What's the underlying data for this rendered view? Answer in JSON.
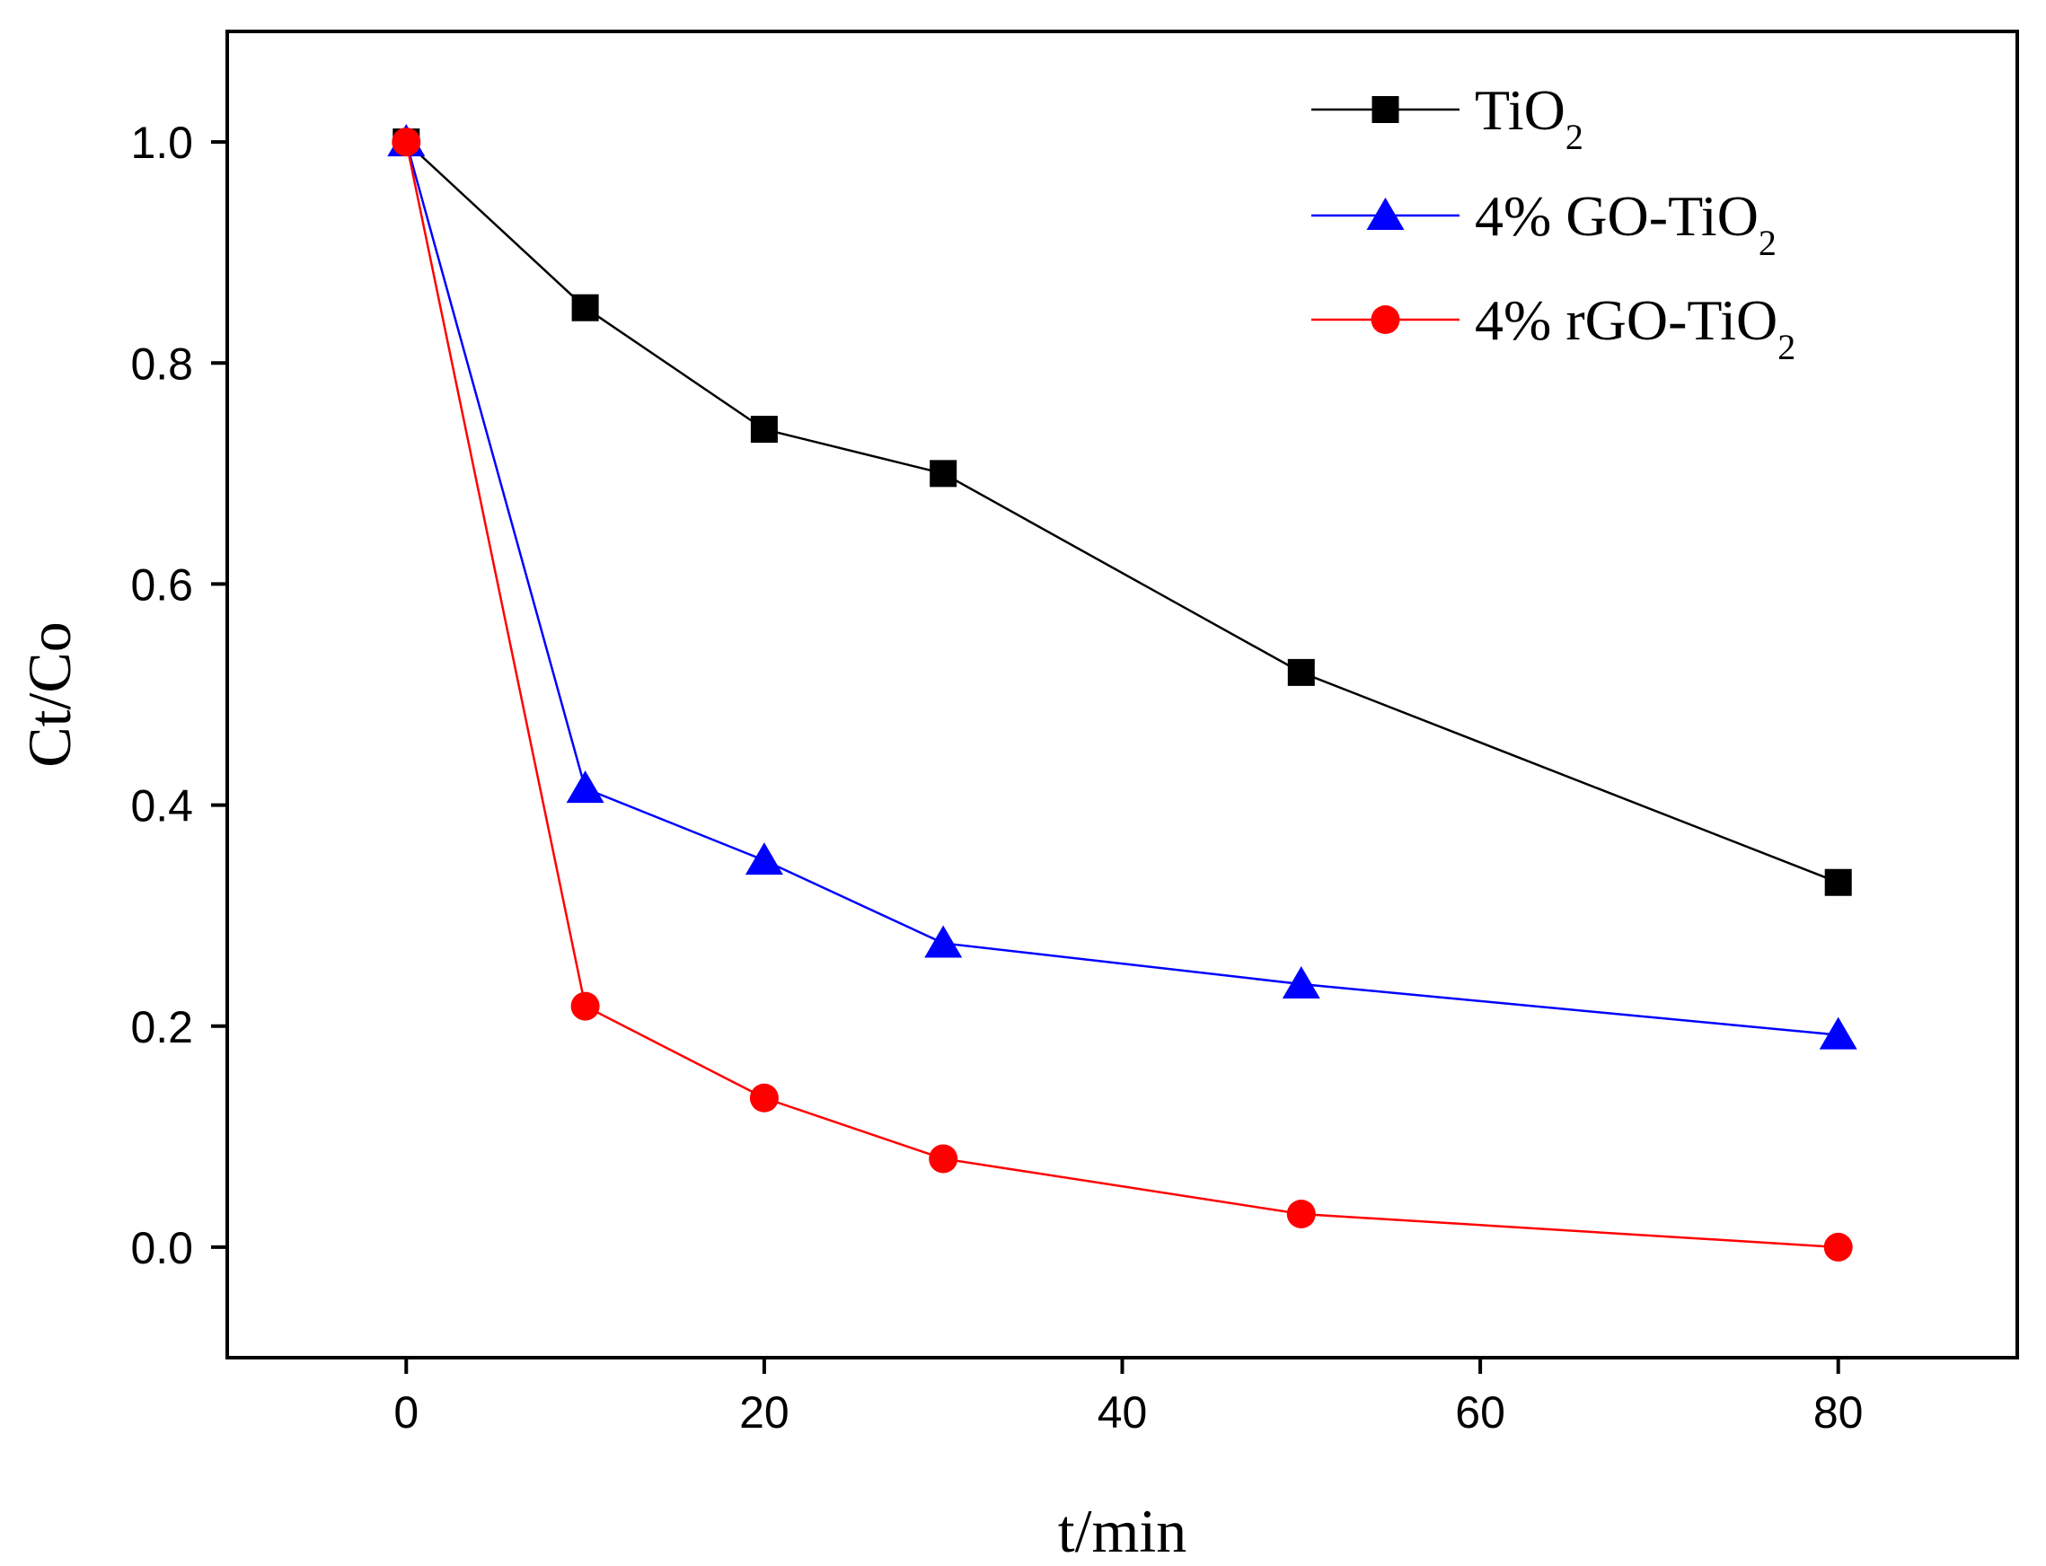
{
  "chart_data": {
    "type": "line",
    "xlabel": "t/min",
    "ylabel": "Ct/Co",
    "xlim": [
      -10,
      90
    ],
    "ylim": [
      -0.1,
      1.1
    ],
    "xticks": [
      0,
      20,
      40,
      60,
      80
    ],
    "yticks": [
      0.0,
      0.2,
      0.4,
      0.6,
      0.8,
      1.0
    ],
    "xtick_labels": [
      "0",
      "20",
      "40",
      "60",
      "80"
    ],
    "ytick_labels": [
      "0.0",
      "0.2",
      "0.4",
      "0.6",
      "0.8",
      "1.0"
    ],
    "grid": false,
    "legend_position": "top-right",
    "series": [
      {
        "name": "TiO2",
        "name_main": "TiO",
        "name_sub": "2",
        "color": "#000000",
        "marker": "square",
        "x": [
          0,
          10,
          20,
          30,
          50,
          80
        ],
        "y": [
          1.0,
          0.85,
          0.74,
          0.7,
          0.52,
          0.33
        ]
      },
      {
        "name": "4% GO-TiO2",
        "name_main": "4% GO-TiO",
        "name_sub": "2",
        "color": "#0000ff",
        "marker": "triangle",
        "x": [
          0,
          10,
          20,
          30,
          50,
          80
        ],
        "y": [
          1.0,
          0.415,
          0.35,
          0.275,
          0.238,
          0.192
        ]
      },
      {
        "name": "4% rGO-TiO2",
        "name_main": "4% rGO-TiO",
        "name_sub": "2",
        "color": "#ff0000",
        "marker": "circle",
        "x": [
          0,
          10,
          20,
          30,
          50,
          80
        ],
        "y": [
          1.0,
          0.218,
          0.135,
          0.08,
          0.03,
          0.0
        ]
      }
    ]
  }
}
